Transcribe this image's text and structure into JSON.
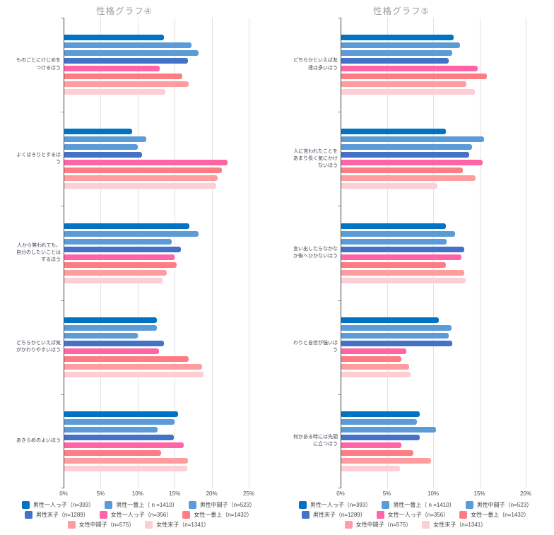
{
  "colors": {
    "background": "#FFFFFF",
    "axis_line": "#3F3F3F",
    "gridline": "#E2E2E2",
    "title_text": "#9B9B9B",
    "category_label_text": "#3D3D4D",
    "tick_label_text": "#4D4D4D",
    "legend_label_text": "#454545"
  },
  "legend_row_layout": [
    3,
    3,
    2
  ],
  "chart_data": [
    {
      "type": "bar",
      "orientation": "horizontal",
      "title": "性格グラフ④",
      "xlim": [
        0,
        25
      ],
      "x_ticks": [
        "0%",
        "5%",
        "10%",
        "15%",
        "20%",
        "25%"
      ],
      "grid": true,
      "legend_position": "bottom",
      "categories": [
        "ものごとにけじめをつけるほう",
        "よくほろりとするほう",
        "人から笑われても、自分のしたいことはするほう",
        "どちらかといえば気がかわりやすいほう",
        "あきらめのよいほう"
      ],
      "series": [
        {
          "name": "男性一人っ子（n=393）",
          "color": "#0073C4",
          "values": [
            13.5,
            9.2,
            16.9,
            12.5,
            15.4
          ]
        },
        {
          "name": "男性一番上（ n =1410）",
          "color": "#5B9BD8",
          "values": [
            17.2,
            11.1,
            18.1,
            12.5,
            14.9
          ]
        },
        {
          "name": "男性中間子（n=523）",
          "color": "#5B9BD8",
          "values": [
            18.1,
            9.9,
            14.5,
            9.9,
            12.6
          ]
        },
        {
          "name": "男性末子（n=1289）",
          "color": "#4472C6",
          "values": [
            16.7,
            10.5,
            15.7,
            13.5,
            14.8
          ]
        },
        {
          "name": "女性一人っ子（n=356）",
          "color": "#FF64A4",
          "values": [
            12.9,
            22.0,
            14.9,
            12.8,
            16.1
          ]
        },
        {
          "name": "女性一番上（n=1432）",
          "color": "#FF7D82",
          "values": [
            15.9,
            21.3,
            15.2,
            16.8,
            13.1
          ]
        },
        {
          "name": "女性中間子（n=575）",
          "color": "#FF9CA0",
          "values": [
            16.8,
            20.7,
            13.8,
            18.6,
            16.7
          ]
        },
        {
          "name": "女性末子（n=1341）",
          "color": "#FFCDD4",
          "values": [
            13.6,
            20.5,
            13.3,
            18.8,
            16.6
          ]
        }
      ]
    },
    {
      "type": "bar",
      "orientation": "horizontal",
      "title": "性格グラフ⑤",
      "xlim": [
        0,
        20
      ],
      "x_ticks": [
        "0%",
        "5%",
        "10%",
        "15%",
        "20%"
      ],
      "grid": true,
      "legend_position": "bottom",
      "categories": [
        "どちらかといえば友達は多いほう",
        "人に言われたことをあまり長く気にかけないほう",
        "言い出したらなかなか後へひかないほう",
        "わりと自信が強いほう",
        "何かある時には先頭に立つほう"
      ],
      "series": [
        {
          "name": "男性一人っ子（n=393）",
          "color": "#0073C4",
          "values": [
            12.1,
            11.3,
            11.3,
            10.5,
            8.5
          ]
        },
        {
          "name": "男性一番上（ n =1410）",
          "color": "#5B9BD8",
          "values": [
            12.8,
            15.4,
            12.3,
            11.9,
            8.2
          ]
        },
        {
          "name": "男性中間子（n=523）",
          "color": "#5B9BD8",
          "values": [
            12.0,
            14.1,
            11.4,
            11.6,
            10.2
          ]
        },
        {
          "name": "男性末子（n=1289）",
          "color": "#4472C6",
          "values": [
            11.6,
            13.8,
            13.3,
            12.0,
            8.5
          ]
        },
        {
          "name": "女性一人っ子（n=356）",
          "color": "#FF64A4",
          "values": [
            14.7,
            15.3,
            13.0,
            7.0,
            6.5
          ]
        },
        {
          "name": "女性一番上（n=1432）",
          "color": "#FF7D82",
          "values": [
            15.7,
            13.1,
            11.3,
            6.5,
            7.8
          ]
        },
        {
          "name": "女性中間子（n=575）",
          "color": "#FF9CA0",
          "values": [
            13.5,
            14.5,
            13.3,
            7.3,
            9.7
          ]
        },
        {
          "name": "女性末子（n=1341）",
          "color": "#FFCDD4",
          "values": [
            14.4,
            10.4,
            13.4,
            7.5,
            6.3
          ]
        }
      ]
    }
  ]
}
